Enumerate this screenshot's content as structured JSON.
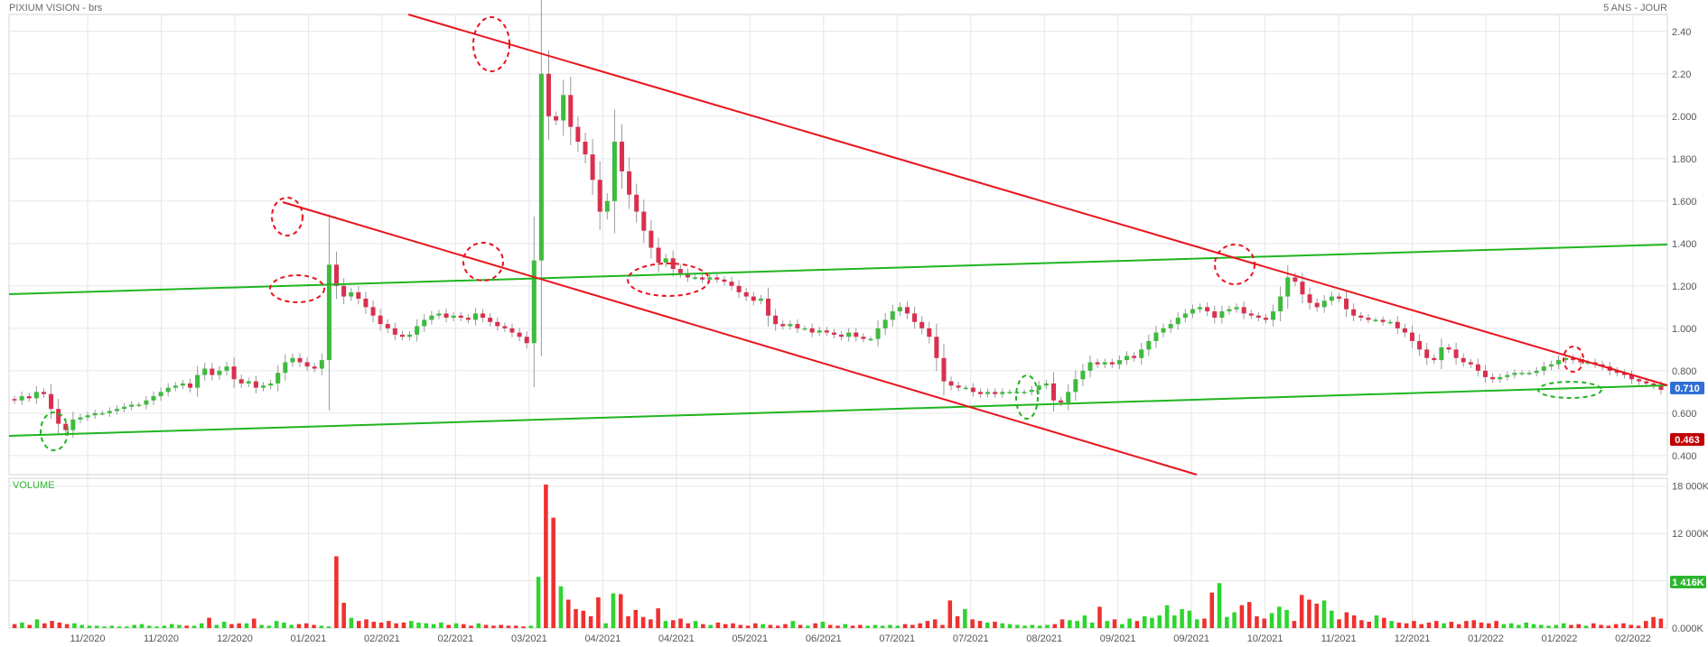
{
  "header": {
    "title": "PIXIUM VISION - brs",
    "period": "5 ANS - JOUR"
  },
  "volume_label": "VOLUME",
  "price_badges": [
    {
      "label": "0.710",
      "value": 0.71,
      "color": "#2f6fd6"
    },
    {
      "label": "0.463",
      "value": 0.463,
      "color": "#c00000"
    }
  ],
  "volume_badge": {
    "label": "1 416K",
    "value": 1416,
    "color": "#2db52d"
  },
  "colors": {
    "up": "#3dbb3d",
    "down": "#d9304f",
    "grid": "#e6e6e6",
    "resistance": "#e8141c",
    "support": "#1fb51f"
  },
  "chart_data": [
    {
      "type": "candlestick",
      "title": "PIXIUM VISION - brs",
      "x_ticks": [
        "11/2020",
        "11/2020",
        "12/2020",
        "01/2021",
        "02/2021",
        "02/2021",
        "03/2021",
        "04/2021",
        "04/2021",
        "05/2021",
        "06/2021",
        "07/2021",
        "07/2021",
        "08/2021",
        "09/2021",
        "09/2021",
        "10/2021",
        "11/2021",
        "12/2021",
        "01/2022",
        "01/2022",
        "02/2022"
      ],
      "y_ticks": [
        "2.40",
        "2.20",
        "2.000",
        "1.800",
        "1.600",
        "1.400",
        "1.200",
        "1.000",
        "0.800",
        "0.600",
        "0.400"
      ],
      "ylim": [
        0.31,
        2.48
      ],
      "close_series": [
        0.66,
        0.68,
        0.67,
        0.7,
        0.69,
        0.62,
        0.55,
        0.52,
        0.57,
        0.58,
        0.59,
        0.6,
        0.6,
        0.61,
        0.62,
        0.63,
        0.64,
        0.64,
        0.66,
        0.68,
        0.7,
        0.72,
        0.73,
        0.74,
        0.72,
        0.78,
        0.81,
        0.78,
        0.8,
        0.82,
        0.76,
        0.74,
        0.75,
        0.72,
        0.73,
        0.74,
        0.79,
        0.84,
        0.86,
        0.84,
        0.82,
        0.81,
        0.85,
        1.3,
        1.2,
        1.15,
        1.17,
        1.14,
        1.1,
        1.06,
        1.02,
        1.0,
        0.97,
        0.96,
        0.97,
        1.01,
        1.04,
        1.06,
        1.07,
        1.05,
        1.06,
        1.05,
        1.04,
        1.07,
        1.05,
        1.03,
        1.01,
        1.0,
        0.98,
        0.96,
        0.93,
        1.32,
        2.2,
        2.0,
        1.98,
        2.1,
        1.95,
        1.88,
        1.82,
        1.7,
        1.55,
        1.6,
        1.88,
        1.74,
        1.63,
        1.55,
        1.46,
        1.38,
        1.31,
        1.33,
        1.28,
        1.26,
        1.24,
        1.24,
        1.23,
        1.24,
        1.23,
        1.22,
        1.2,
        1.17,
        1.15,
        1.13,
        1.14,
        1.06,
        1.02,
        1.01,
        1.02,
        1.0,
        1.0,
        0.98,
        0.99,
        0.98,
        0.97,
        0.96,
        0.98,
        0.96,
        0.95,
        0.95,
        1.0,
        1.04,
        1.08,
        1.1,
        1.07,
        1.03,
        1.0,
        0.96,
        0.86,
        0.75,
        0.73,
        0.72,
        0.72,
        0.7,
        0.69,
        0.7,
        0.69,
        0.7,
        0.7,
        0.7,
        0.7,
        0.71,
        0.73,
        0.74,
        0.66,
        0.65,
        0.7,
        0.76,
        0.8,
        0.84,
        0.83,
        0.84,
        0.83,
        0.85,
        0.87,
        0.86,
        0.9,
        0.94,
        0.98,
        1.0,
        1.02,
        1.05,
        1.07,
        1.09,
        1.1,
        1.08,
        1.05,
        1.08,
        1.09,
        1.1,
        1.07,
        1.06,
        1.05,
        1.04,
        1.08,
        1.15,
        1.24,
        1.22,
        1.16,
        1.12,
        1.1,
        1.13,
        1.15,
        1.14,
        1.09,
        1.06,
        1.05,
        1.04,
        1.04,
        1.03,
        1.03,
        1.0,
        0.98,
        0.94,
        0.9,
        0.86,
        0.85,
        0.91,
        0.9,
        0.86,
        0.84,
        0.83,
        0.8,
        0.77,
        0.76,
        0.77,
        0.78,
        0.79,
        0.79,
        0.79,
        0.8,
        0.82,
        0.83,
        0.85,
        0.86,
        0.85,
        0.84,
        0.84,
        0.83,
        0.82,
        0.8,
        0.79,
        0.78,
        0.76,
        0.75,
        0.74,
        0.73,
        0.71
      ],
      "volume_ylim": [
        0,
        19000
      ],
      "volume_ticks": [
        "18 000K",
        "12 000K",
        "6 000K",
        "0.000K"
      ],
      "volume_series": [
        500,
        700,
        400,
        1100,
        600,
        900,
        700,
        500,
        600,
        400,
        300,
        300,
        200,
        300,
        200,
        200,
        400,
        500,
        300,
        200,
        300,
        500,
        400,
        300,
        300,
        600,
        1300,
        400,
        800,
        500,
        600,
        600,
        1200,
        400,
        300,
        900,
        700,
        400,
        500,
        600,
        400,
        300,
        200,
        9100,
        3200,
        1300,
        900,
        1100,
        800,
        700,
        900,
        600,
        700,
        900,
        700,
        600,
        500,
        700,
        400,
        600,
        500,
        300,
        600,
        400,
        300,
        400,
        300,
        300,
        200,
        300,
        6500,
        18200,
        14000,
        5300,
        3600,
        2400,
        2200,
        1500,
        3900,
        600,
        4400,
        4300,
        1500,
        2300,
        1400,
        1100,
        2500,
        900,
        1000,
        1200,
        600,
        900,
        500,
        400,
        700,
        500,
        600,
        400,
        300,
        600,
        500,
        400,
        300,
        500,
        900,
        400,
        300,
        600,
        800,
        400,
        300,
        500,
        300,
        400,
        300,
        400,
        300,
        400,
        300,
        500,
        400,
        600,
        900,
        1100,
        400,
        3500,
        1500,
        2400,
        1100,
        900,
        700,
        800,
        600,
        500,
        400,
        300,
        400,
        300,
        400,
        500,
        1100,
        1000,
        900,
        1600,
        700,
        2700,
        900,
        1100,
        500,
        1200,
        900,
        1500,
        1300,
        1600,
        2900,
        1600,
        2400,
        2200,
        1100,
        1200,
        4500,
        5700,
        1400,
        2000,
        2900,
        3300,
        1500,
        1200,
        1900,
        2700,
        2300,
        900,
        4200,
        3600,
        3100,
        3500,
        2200,
        1100,
        2000,
        1600,
        1000,
        800,
        1600,
        1300,
        900,
        700,
        600,
        900,
        500,
        700,
        900,
        600,
        800,
        500,
        900,
        1000,
        700,
        600,
        900,
        500,
        600,
        400,
        700,
        500,
        400,
        300,
        400,
        600,
        400,
        500,
        300,
        600,
        400,
        300,
        500,
        600,
        400,
        300,
        900,
        1400,
        1200
      ]
    }
  ]
}
